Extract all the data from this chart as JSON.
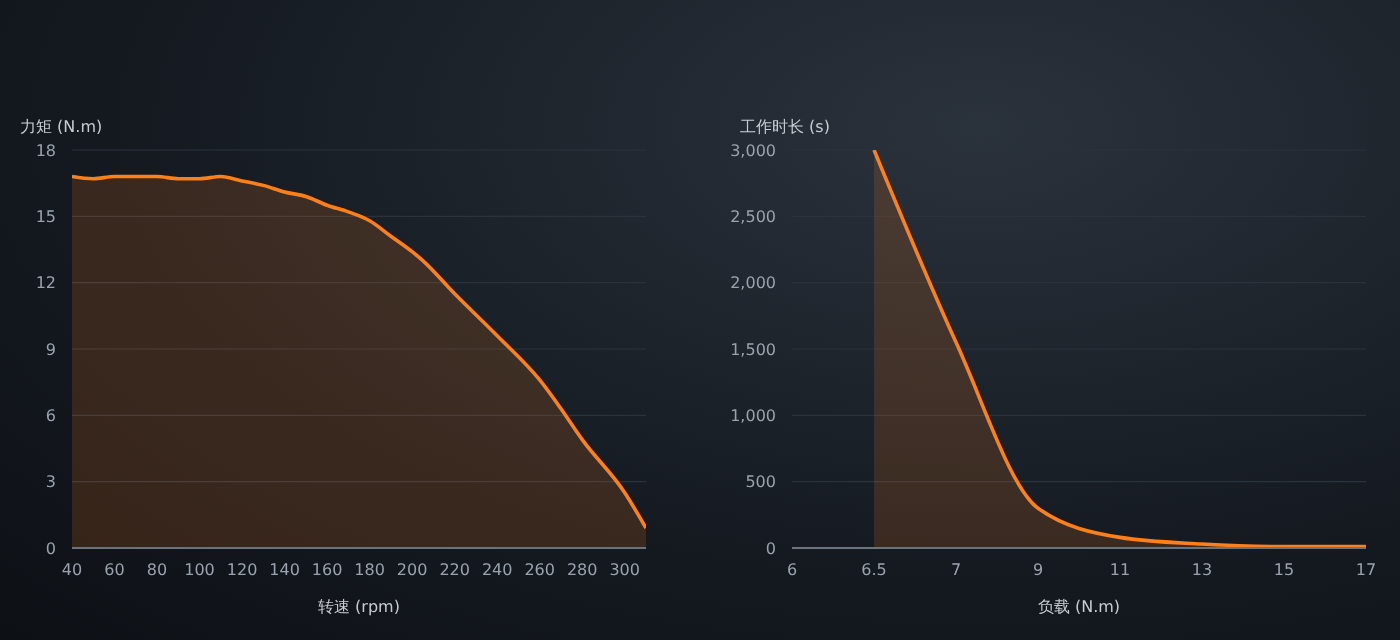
{
  "chart_data": [
    {
      "type": "area",
      "ylabel": "力矩 (N.m)",
      "xlabel": "转速 (rpm)",
      "x": [
        40,
        50,
        60,
        70,
        80,
        90,
        100,
        110,
        120,
        130,
        140,
        150,
        160,
        170,
        180,
        190,
        200,
        205,
        220,
        240,
        260,
        270,
        280,
        300,
        310
      ],
      "series": [
        {
          "color": "#ff7f1a",
          "values": [
            16.8,
            16.7,
            16.8,
            16.8,
            16.8,
            16.7,
            16.7,
            16.8,
            16.6,
            16.4,
            16.1,
            15.9,
            15.5,
            15.2,
            14.8,
            14.1,
            13.4,
            13,
            11.5,
            9.6,
            7.6,
            6.3,
            4.9,
            2.5,
            0.9
          ]
        }
      ],
      "xlim": [
        40,
        310
      ],
      "xticks": [
        40,
        60,
        80,
        100,
        120,
        140,
        160,
        180,
        200,
        220,
        240,
        260,
        280,
        300
      ],
      "ylim": [
        0,
        18
      ],
      "yticks": [
        0,
        3,
        6,
        9,
        12,
        15,
        18
      ],
      "grid": "y",
      "legend": false
    },
    {
      "type": "area",
      "ylabel": "工作时长 (s)",
      "xlabel": "负载 (N.m)",
      "categories": [
        "6",
        "6.5",
        "7",
        "9",
        "11",
        "13",
        "15",
        "17"
      ],
      "series": [
        {
          "color": "#ff7f1a",
          "values": [
            null,
            3000,
            1550,
            300,
            80,
            30,
            10,
            10
          ]
        }
      ],
      "ylim": [
        0,
        3000
      ],
      "yticks": [
        0,
        500,
        {
          "value": 1000,
          "label": "1,000"
        },
        {
          "value": 1500,
          "label": "1,500"
        },
        {
          "value": 2000,
          "label": "2,000"
        },
        {
          "value": 2500,
          "label": "2,500"
        },
        {
          "value": 3000,
          "label": "3,000"
        }
      ],
      "grid": "y",
      "legend": false
    }
  ]
}
